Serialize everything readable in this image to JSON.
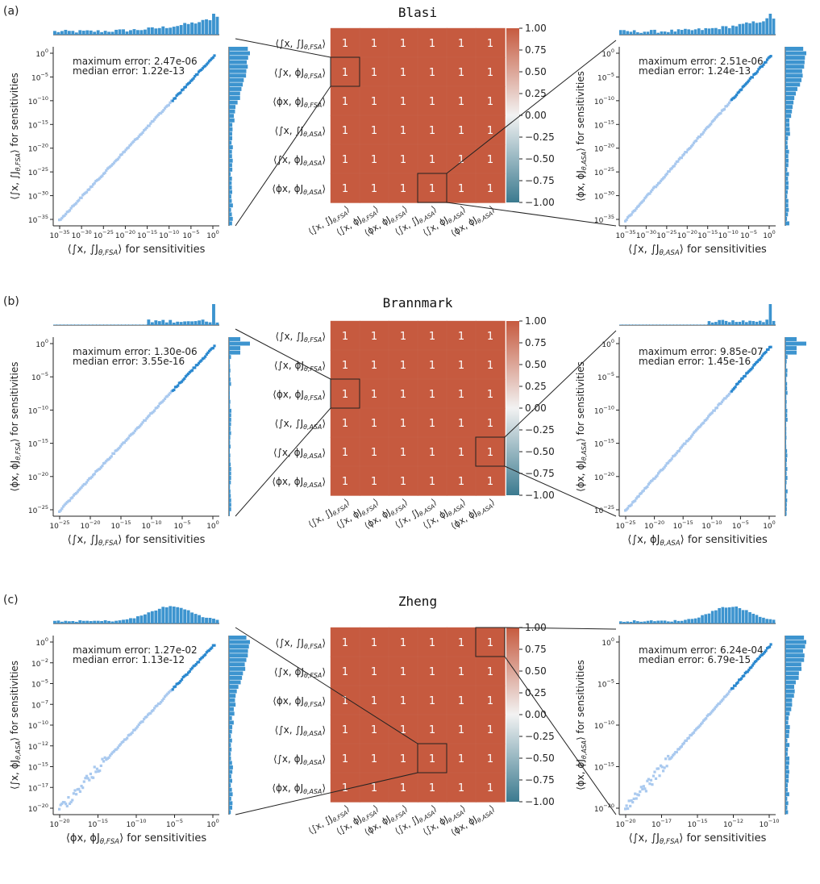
{
  "panels": [
    {
      "label": "(a)",
      "title": "Blasi",
      "heatmap_zoom": [
        [
          1,
          0
        ],
        [
          5,
          3
        ]
      ],
      "left": {
        "xlabel": "⟨∫x, ∫J_{θ,FSA}⟩ for sensitivities",
        "ylabel": "⟨∫x, ∫J_{θ,FSA}⟩ for sensitivities",
        "max_error": "maximum error: 2.47e-06",
        "median_error": "median error: 1.22e-13",
        "xticks": [
          "10^-35",
          "10^-30",
          "10^-25",
          "10^-20",
          "10^-15",
          "10^-10",
          "10^-5",
          "10^0"
        ],
        "yticks": [
          "10^0",
          "10^-5",
          "10^-10",
          "10^-15",
          "10^-20",
          "10^-25",
          "10^-30",
          "10^-35"
        ]
      },
      "right": {
        "xlabel": "⟨∫x, ∫J_{θ,ASA}⟩ for sensitivities",
        "ylabel": "⟨ϕx, ϕJ_{θ,ASA}⟩ for sensitivities",
        "max_error": "maximum error: 2.51e-06",
        "median_error": "median error: 1.24e-13",
        "xticks": [
          "10^-35",
          "10^-30",
          "10^-25",
          "10^-20",
          "10^-15",
          "10^-10",
          "10^-5",
          "10^0"
        ],
        "yticks": [
          "10^0",
          "10^-5",
          "10^-10",
          "10^-15",
          "10^-20",
          "10^-25",
          "10^-30",
          "10^-35"
        ]
      }
    },
    {
      "label": "(b)",
      "title": "Brannmark",
      "heatmap_zoom": [
        [
          2,
          0
        ],
        [
          4,
          5
        ]
      ],
      "left": {
        "xlabel": "⟨∫x, ∫J_{θ,FSA}⟩ for sensitivities",
        "ylabel": "⟨ϕx, ϕJ_{θ,FSA}⟩ for sensitivities",
        "max_error": "maximum error: 1.30e-06",
        "median_error": "median error: 3.55e-16",
        "xticks": [
          "10^-25",
          "10^-20",
          "10^-15",
          "10^-10",
          "10^-5",
          "10^0"
        ],
        "yticks": [
          "10^0",
          "10^-5",
          "10^-10",
          "10^-15",
          "10^-20",
          "10^-25"
        ]
      },
      "right": {
        "xlabel": "⟨∫x, ϕJ_{θ,ASA}⟩ for sensitivities",
        "ylabel": "⟨ϕx, ϕJ_{θ,ASA}⟩ for sensitivities",
        "max_error": "maximum error: 9.85e-07",
        "median_error": "median error: 1.45e-16",
        "xticks": [
          "10^-25",
          "10^-20",
          "10^-15",
          "10^-10",
          "10^-5",
          "10^0"
        ],
        "yticks": [
          "10^0",
          "10^-5",
          "10^-10",
          "10^-15",
          "10^-20",
          "10^-25"
        ]
      }
    },
    {
      "label": "(c)",
      "title": "Zheng",
      "heatmap_zoom": [
        [
          4,
          3
        ],
        [
          0,
          5
        ]
      ],
      "left": {
        "xlabel": "⟨ϕx, ϕJ_{θ,FSA}⟩ for sensitivities",
        "ylabel": "⟨∫x, ϕJ_{θ,ASA}⟩ for sensitivities",
        "max_error": "maximum error: 1.27e-02",
        "median_error": "median error: 1.13e-12",
        "xticks": [
          "10^-20",
          "10^-15",
          "10^-10",
          "10^-5",
          "10^0"
        ],
        "yticks": [
          "10^0",
          "10^-2",
          "10^-5",
          "10^-7",
          "10^-10",
          "10^-12",
          "10^-15",
          "10^-17",
          "10^-20"
        ]
      },
      "right": {
        "xlabel": "⟨∫x, ∫J_{θ,FSA}⟩ for sensitivities",
        "ylabel": "⟨ϕx, ϕJ_{θ,ASA}⟩ for sensitivities",
        "max_error": "maximum error: 6.24e-04",
        "median_error": "median error: 6.79e-15",
        "xticks": [
          "10^-20",
          "10^-17",
          "10^-15",
          "10^-12",
          "10^-10"
        ],
        "yticks": [
          "10^0",
          "10^-5",
          "10^-10",
          "10^-15",
          "10^-20"
        ]
      }
    }
  ],
  "heatmap": {
    "row_labels": [
      "⟨∫x, ∫J_{θ,FSA}⟩",
      "⟨∫x, ϕJ_{θ,FSA}⟩",
      "⟨ϕx, ϕJ_{θ,FSA}⟩",
      "⟨∫x, ∫J_{θ,ASA}⟩",
      "⟨∫x, ϕJ_{θ,ASA}⟩",
      "⟨ϕx, ϕJ_{θ,ASA}⟩"
    ],
    "col_labels": [
      "⟨∫x, ∫J_{θ,FSA}⟩",
      "⟨∫x, ϕJ_{θ,FSA}⟩",
      "⟨ϕx, ϕJ_{θ,FSA}⟩",
      "⟨∫x, ∫J_{θ,ASA}⟩",
      "⟨∫x, ϕJ_{θ,ASA}⟩",
      "⟨ϕx, ϕJ_{θ,ASA}⟩"
    ],
    "cell_value": "1",
    "cell_color": "#c65a3f",
    "colorbar_ticks": [
      "1.00",
      "0.75",
      "0.50",
      "0.25",
      "0.00",
      "−0.25",
      "−0.50",
      "−0.75",
      "−1.00"
    ]
  },
  "chart_data": [
    {
      "type": "heatmap",
      "title": "Blasi",
      "values": [
        [
          1,
          1,
          1,
          1,
          1,
          1
        ],
        [
          1,
          1,
          1,
          1,
          1,
          1
        ],
        [
          1,
          1,
          1,
          1,
          1,
          1
        ],
        [
          1,
          1,
          1,
          1,
          1,
          1
        ],
        [
          1,
          1,
          1,
          1,
          1,
          1
        ],
        [
          1,
          1,
          1,
          1,
          1,
          1
        ]
      ],
      "vlim": [
        -1,
        1
      ]
    },
    {
      "type": "heatmap",
      "title": "Brannmark",
      "values": [
        [
          1,
          1,
          1,
          1,
          1,
          1
        ],
        [
          1,
          1,
          1,
          1,
          1,
          1
        ],
        [
          1,
          1,
          1,
          1,
          1,
          1
        ],
        [
          1,
          1,
          1,
          1,
          1,
          1
        ],
        [
          1,
          1,
          1,
          1,
          1,
          1
        ],
        [
          1,
          1,
          1,
          1,
          1,
          1
        ]
      ],
      "vlim": [
        -1,
        1
      ]
    },
    {
      "type": "heatmap",
      "title": "Zheng",
      "values": [
        [
          1,
          1,
          1,
          1,
          1,
          1
        ],
        [
          1,
          1,
          1,
          1,
          1,
          1
        ],
        [
          1,
          1,
          1,
          1,
          1,
          1
        ],
        [
          1,
          1,
          1,
          1,
          1,
          1
        ],
        [
          1,
          1,
          1,
          1,
          1,
          1
        ],
        [
          1,
          1,
          1,
          1,
          1,
          1
        ]
      ],
      "vlim": [
        -1,
        1
      ]
    }
  ],
  "colors": {
    "scatter_light": "#a9c9ef",
    "scatter_dark": "#2a88cf",
    "hist": "#3d94cf",
    "cmap_high": "#c65a3f",
    "cmap_mid": "#f2f2f2",
    "cmap_low": "#3b7a8f"
  }
}
